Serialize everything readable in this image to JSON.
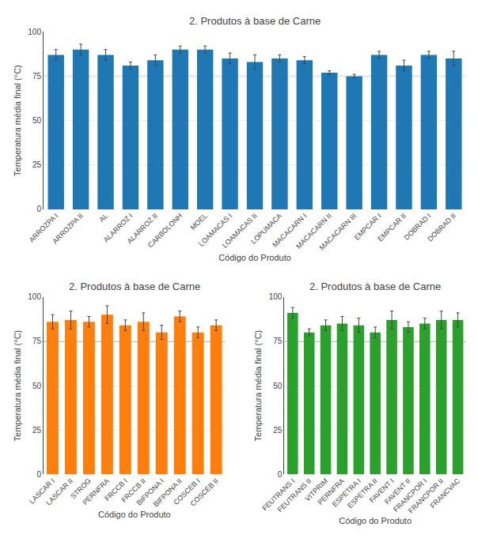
{
  "chart_data": [
    {
      "type": "bar",
      "title": "2. Produtos à base de Carne",
      "xlabel": "Código do Produto",
      "ylabel": "Temperatura média final (°C)",
      "categories": [
        "ARROZPA I",
        "ARROZPA II",
        "AL",
        "ALARROZ I",
        "ALARROZ II",
        "CARBOLONH",
        "MOEL",
        "LOAMACAS I",
        "LOAMACAS II",
        "LOPUMACA",
        "MACACARN I",
        "MACACARN II",
        "MACACARN III",
        "EMPCAR I",
        "EMPCAR II",
        "DOBRAD I",
        "DOBRAD II"
      ],
      "values": [
        87,
        90,
        87,
        81,
        84,
        90,
        90,
        85,
        83,
        85,
        84,
        77,
        75,
        87,
        81,
        87,
        85
      ],
      "errors": [
        3,
        3,
        3,
        2,
        3,
        2,
        2,
        3,
        4,
        2,
        2,
        1,
        1,
        2,
        3,
        2,
        4
      ],
      "hline": 75,
      "ylim": [
        0,
        100
      ],
      "yticks": [
        0,
        25,
        50,
        75,
        100
      ],
      "grid": true
    },
    {
      "type": "bar",
      "title": "2. Produtos à base de Carne",
      "xlabel": "Código do Produto",
      "ylabel": "Temperatura média final (°C)",
      "categories": [
        "LASCAR I",
        "LASCAR II",
        "STROG",
        "PERNFRA",
        "FRCCB I",
        "FRCCB II",
        "BIFPONA I",
        "BIFPONA II",
        "COSCEB I",
        "COSCEB II"
      ],
      "values": [
        86,
        87,
        86,
        90,
        84,
        86,
        80,
        89,
        80,
        84
      ],
      "errors": [
        4,
        5,
        3,
        5,
        3,
        5,
        4,
        3,
        3,
        3
      ],
      "hline": 75,
      "ylim": [
        0,
        100
      ],
      "yticks": [
        0,
        25,
        50,
        75,
        100
      ],
      "grid": true
    },
    {
      "type": "bar",
      "title": "2. Produtos à base de Carne",
      "xlabel": "Código do Produto",
      "ylabel": "Temperatura média final (°C)",
      "categories": [
        "FEUTRANS I",
        "FEUTRANS II",
        "VITPRIM",
        "PERNFRA",
        "ESPETRA I",
        "ESPETRA II",
        "FAVENT I",
        "FAVENT II",
        "FRANCPOR I",
        "FRANCPOR II",
        "FRANCVAC"
      ],
      "values": [
        91,
        80,
        84,
        85,
        84,
        80,
        87,
        83,
        85,
        87,
        87
      ],
      "errors": [
        3,
        2,
        3,
        4,
        4,
        3,
        5,
        3,
        3,
        5,
        4
      ],
      "hline": 75,
      "ylim": [
        0,
        100
      ],
      "yticks": [
        0,
        25,
        50,
        75,
        100
      ],
      "grid": true
    }
  ]
}
